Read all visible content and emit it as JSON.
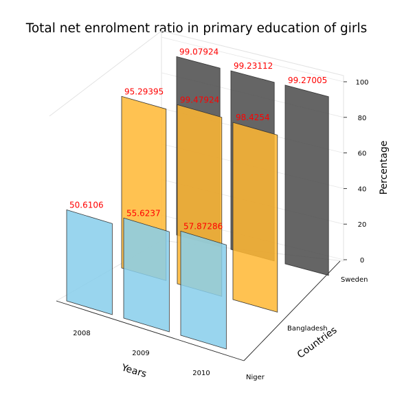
{
  "chart_data": {
    "type": "bar",
    "title": "Total net enrolment ratio in primary education of girls",
    "xlabel": "Years",
    "ylabel": "Countries",
    "zlabel": "Percentage",
    "x_categories": [
      "2008",
      "2009",
      "2010"
    ],
    "y_categories": [
      "Niger",
      "Bangladesh",
      "Sweden"
    ],
    "zlim": [
      0,
      100
    ],
    "z_ticks": [
      "0",
      "20",
      "40",
      "60",
      "80",
      "100"
    ],
    "series": [
      {
        "name": "Niger",
        "color": "#87ceeb",
        "values": [
          50.6106,
          55.6237,
          57.87286
        ],
        "labels": [
          "50.6106",
          "55.6237",
          "57.87286"
        ]
      },
      {
        "name": "Bangladesh",
        "color": "#ffb732",
        "values": [
          95.29395,
          99.47924,
          98.4254
        ],
        "labels": [
          "95.29395",
          "99.47924",
          "98.4254"
        ]
      },
      {
        "name": "Sweden",
        "color": "#4a4a4a",
        "values": [
          99.07924,
          99.23112,
          99.27005
        ],
        "labels": [
          "99.07924",
          "99.23112",
          "99.27005"
        ]
      }
    ]
  }
}
